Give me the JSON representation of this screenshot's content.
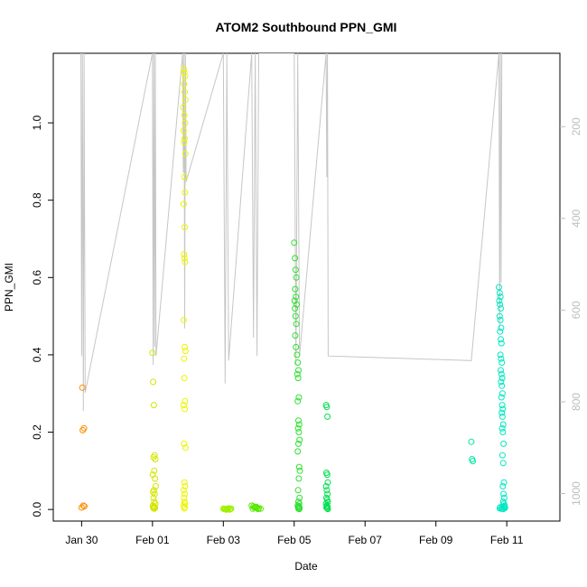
{
  "chart_data": {
    "type": "scatter",
    "title": "ATOM2 Southbound PPN_GMI",
    "xlabel": "Date",
    "ylabel": "PPN_GMI",
    "x_ticks": [
      "Jan 30",
      "Feb 01",
      "Feb 03",
      "Feb 05",
      "Feb 07",
      "Feb 09",
      "Feb 11"
    ],
    "y_ticks": [
      "0.0",
      "0.2",
      "0.4",
      "0.6",
      "0.8",
      "1.0"
    ],
    "y2_ticks": [
      "200",
      "400",
      "600",
      "800",
      "1000"
    ],
    "xlim_days": [
      -1.8,
      12.5
    ],
    "ylim": [
      -0.03,
      1.18
    ],
    "y2lim": [
      1060,
      40
    ],
    "grid": false,
    "colors": {
      "axis": "#000000",
      "right_axis": "#bdbdbd",
      "depth_line": "#c6c6c6"
    },
    "series": [
      {
        "color": "#ff8c00",
        "x": [
          -1.0,
          -0.95,
          -0.98,
          -0.93,
          -0.97,
          -0.92
        ],
        "y": [
          0.005,
          0.01,
          0.315,
          0.21,
          0.205,
          0.008
        ]
      },
      {
        "color": "#d4e600",
        "x": [
          1.0,
          1.02,
          1.04,
          1.06,
          1.03,
          1.08,
          1.05,
          1.01,
          1.07,
          1.09,
          1.04,
          1.02,
          1.06,
          1.03,
          1.05,
          1.08,
          1.01,
          1.04,
          1.06,
          1.02,
          1.07,
          1.03,
          1.05
        ],
        "y": [
          0.405,
          0.33,
          0.27,
          0.14,
          0.135,
          0.13,
          0.1,
          0.09,
          0.08,
          0.06,
          0.05,
          0.045,
          0.04,
          0.03,
          0.02,
          0.015,
          0.01,
          0.008,
          0.006,
          0.005,
          0.004,
          0.003,
          0.002
        ]
      },
      {
        "color": "#ecf500",
        "x": [
          1.88,
          1.9,
          1.92,
          1.89,
          1.91,
          1.93,
          1.87,
          1.9,
          1.92,
          1.88,
          1.91,
          1.89,
          1.93,
          1.9,
          1.92,
          1.88,
          1.91,
          1.89,
          1.9,
          1.92,
          1.88,
          1.91,
          1.93,
          1.89,
          1.9,
          1.92,
          1.88,
          1.91,
          1.89,
          1.93,
          1.9,
          1.92,
          1.88,
          1.91,
          1.89,
          1.9,
          1.92,
          1.88,
          1.91,
          1.9
        ],
        "y": [
          1.14,
          1.13,
          1.12,
          1.1,
          1.08,
          1.06,
          1.04,
          1.02,
          1.0,
          0.98,
          0.96,
          0.95,
          0.92,
          0.86,
          0.82,
          0.79,
          0.73,
          0.66,
          0.65,
          0.64,
          0.49,
          0.42,
          0.41,
          0.39,
          0.34,
          0.28,
          0.27,
          0.26,
          0.17,
          0.16,
          0.07,
          0.06,
          0.05,
          0.04,
          0.03,
          0.02,
          0.015,
          0.01,
          0.005,
          0.003
        ]
      },
      {
        "color": "#9ef000",
        "x": [
          3.0,
          3.05,
          3.1,
          3.15,
          3.2,
          3.08,
          3.12,
          3.03,
          3.18,
          3.22
        ],
        "y": [
          0.002,
          0.001,
          0.0,
          0.003,
          0.001,
          0.0,
          0.002,
          0.001,
          0.0,
          0.002
        ]
      },
      {
        "color": "#55e800",
        "x": [
          3.8,
          3.85,
          3.9,
          3.95,
          4.0,
          4.05,
          3.88,
          3.93,
          3.83,
          3.98
        ],
        "y": [
          0.01,
          0.008,
          0.006,
          0.004,
          0.003,
          0.002,
          0.005,
          0.007,
          0.002,
          0.001
        ]
      },
      {
        "color": "#2ee030",
        "x": [
          5.0,
          5.02,
          5.04,
          5.06,
          5.03,
          5.05,
          5.01,
          5.07,
          5.02,
          5.04,
          5.06,
          5.03,
          5.05,
          5.08,
          5.1,
          5.12,
          5.09,
          5.11,
          5.13,
          5.1,
          5.12,
          5.14,
          5.11,
          5.13,
          5.15,
          5.12,
          5.1,
          5.14,
          5.16,
          5.13,
          5.11,
          5.15,
          5.12,
          5.14,
          5.1,
          5.13,
          5.11,
          5.15,
          5.12,
          5.14
        ],
        "y": [
          0.69,
          0.65,
          0.62,
          0.6,
          0.57,
          0.55,
          0.54,
          0.53,
          0.52,
          0.5,
          0.48,
          0.45,
          0.42,
          0.4,
          0.38,
          0.36,
          0.35,
          0.34,
          0.29,
          0.28,
          0.23,
          0.22,
          0.21,
          0.2,
          0.18,
          0.17,
          0.15,
          0.11,
          0.1,
          0.08,
          0.05,
          0.03,
          0.02,
          0.015,
          0.01,
          0.008,
          0.006,
          0.004,
          0.002,
          0.001
        ]
      },
      {
        "color": "#00e050",
        "x": [
          5.9,
          5.92,
          5.94,
          5.91,
          5.93,
          5.95,
          5.9,
          5.92,
          5.94,
          5.91,
          5.93,
          5.95,
          5.9,
          5.92,
          5.94,
          5.91,
          5.93,
          5.95
        ],
        "y": [
          0.27,
          0.265,
          0.24,
          0.095,
          0.09,
          0.07,
          0.06,
          0.05,
          0.04,
          0.03,
          0.025,
          0.02,
          0.015,
          0.01,
          0.008,
          0.005,
          0.003,
          0.001
        ]
      },
      {
        "color": "#00e8a0",
        "x": [
          10.0,
          10.02,
          10.04
        ],
        "y": [
          0.175,
          0.13,
          0.125
        ]
      },
      {
        "color": "#00e8c0",
        "x": [
          10.78,
          10.8,
          10.82,
          10.79,
          10.81,
          10.83,
          10.8,
          10.82,
          10.84,
          10.81,
          10.83,
          10.85,
          10.82,
          10.84,
          10.86,
          10.83,
          10.85,
          10.87,
          10.84,
          10.86,
          10.88,
          10.85,
          10.87,
          10.89,
          10.86,
          10.88,
          10.9,
          10.87,
          10.89,
          10.91,
          10.88,
          10.9,
          10.92,
          10.89,
          10.91,
          10.93,
          10.9,
          10.92,
          10.94,
          10.91,
          10.93,
          10.8,
          10.85,
          10.9,
          10.95,
          10.82,
          10.88
        ],
        "y": [
          0.575,
          0.56,
          0.55,
          0.54,
          0.53,
          0.52,
          0.5,
          0.49,
          0.47,
          0.46,
          0.44,
          0.43,
          0.4,
          0.39,
          0.38,
          0.36,
          0.35,
          0.34,
          0.33,
          0.32,
          0.3,
          0.29,
          0.27,
          0.26,
          0.25,
          0.24,
          0.22,
          0.21,
          0.2,
          0.17,
          0.14,
          0.12,
          0.07,
          0.06,
          0.04,
          0.03,
          0.02,
          0.015,
          0.01,
          0.008,
          0.005,
          0.003,
          0.002,
          0.001,
          0.004,
          0.006,
          0.002
        ]
      }
    ],
    "depth_series": {
      "axis": "right",
      "x": [
        -1.02,
        -1.0,
        -0.98,
        -0.95,
        -0.93,
        -0.9,
        1.0,
        1.02,
        1.04,
        1.06,
        1.08,
        1.1,
        1.85,
        1.87,
        1.89,
        1.91,
        1.93,
        1.95,
        3.0,
        3.05,
        3.1,
        3.15,
        3.8,
        3.85,
        3.9,
        3.95,
        4.0,
        5.0,
        5.05,
        5.1,
        5.15,
        5.9,
        5.92,
        5.94,
        5.96,
        10.0,
        10.78,
        10.8,
        10.82,
        10.84,
        10.86
      ],
      "y": [
        40,
        700,
        40,
        820,
        40,
        780,
        40,
        720,
        40,
        680,
        40,
        700,
        40,
        300,
        40,
        640,
        40,
        320,
        40,
        760,
        40,
        710,
        40,
        660,
        40,
        700,
        40,
        40,
        720,
        40,
        700,
        40,
        310,
        40,
        700,
        710,
        40,
        640,
        40,
        540,
        40
      ]
    }
  }
}
